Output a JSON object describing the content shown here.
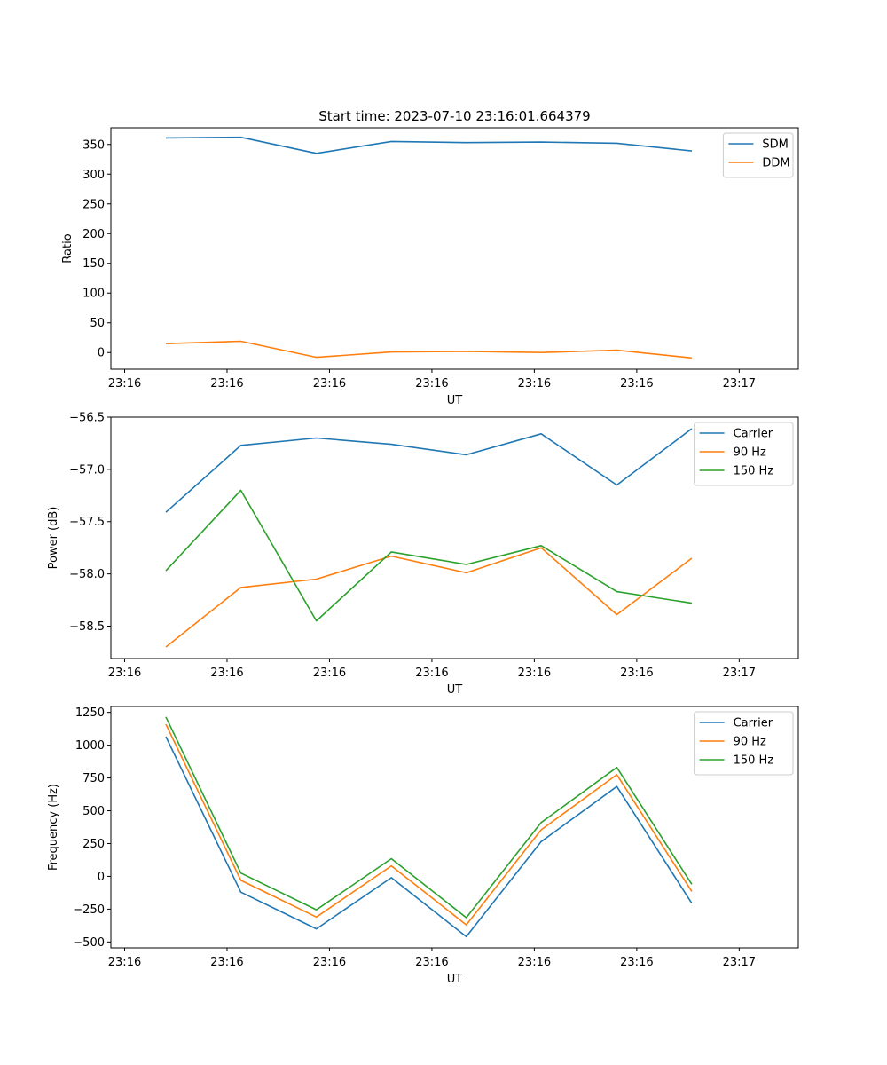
{
  "figure": {
    "title": "Start time: 2023-07-10 23:16:01.664379"
  },
  "chart_data": [
    {
      "type": "line",
      "title": "Start time: 2023-07-10 23:16:01.664379",
      "xlabel": "UT",
      "ylabel": "Ratio",
      "x_tick_labels": [
        "23:16",
        "23:16",
        "23:16",
        "23:16",
        "23:16",
        "23:16",
        "23:17"
      ],
      "xlim": [
        -0.5,
        9.5
      ],
      "ylim": [
        -28,
        378
      ],
      "y_ticks": [
        0,
        50,
        100,
        150,
        200,
        250,
        300,
        350
      ],
      "y_tick_labels": [
        "0",
        "50",
        "100",
        "150",
        "200",
        "250",
        "300",
        "350"
      ],
      "legend_position": "top-right",
      "x": [
        0.3,
        1.39,
        2.49,
        3.58,
        4.67,
        5.76,
        6.86,
        7.95
      ],
      "series": [
        {
          "name": "SDM",
          "color": "#1f77b4",
          "values": [
            361,
            362,
            335,
            355,
            353,
            354,
            352,
            339
          ]
        },
        {
          "name": "DDM",
          "color": "#ff7f0e",
          "values": [
            15,
            19,
            -8,
            1,
            2,
            0,
            4,
            -9
          ]
        }
      ]
    },
    {
      "type": "line",
      "xlabel": "UT",
      "ylabel": "Power (dB)",
      "x_tick_labels": [
        "23:16",
        "23:16",
        "23:16",
        "23:16",
        "23:16",
        "23:16",
        "23:17"
      ],
      "xlim": [
        -0.5,
        9.5
      ],
      "ylim": [
        -58.81,
        -56.5
      ],
      "y_ticks": [
        -58.5,
        -58.0,
        -57.5,
        -57.0,
        -56.5
      ],
      "y_tick_labels": [
        "−58.5",
        "−58.0",
        "−57.5",
        "−57.0",
        "−56.5"
      ],
      "legend_position": "top-right",
      "x": [
        0.3,
        1.39,
        2.49,
        3.58,
        4.67,
        5.76,
        6.86,
        7.95
      ],
      "series": [
        {
          "name": "Carrier",
          "color": "#1f77b4",
          "values": [
            -57.41,
            -56.77,
            -56.7,
            -56.76,
            -56.86,
            -56.66,
            -57.15,
            -56.61
          ]
        },
        {
          "name": "90 Hz",
          "color": "#ff7f0e",
          "values": [
            -58.7,
            -58.13,
            -58.05,
            -57.83,
            -57.99,
            -57.75,
            -58.39,
            -57.85
          ]
        },
        {
          "name": "150 Hz",
          "color": "#2ca02c",
          "values": [
            -57.97,
            -57.2,
            -58.45,
            -57.79,
            -57.91,
            -57.73,
            -58.17,
            -58.28
          ]
        }
      ]
    },
    {
      "type": "line",
      "xlabel": "UT",
      "ylabel": "Frequency (Hz)",
      "x_tick_labels": [
        "23:16",
        "23:16",
        "23:16",
        "23:16",
        "23:16",
        "23:16",
        "23:17"
      ],
      "xlim": [
        -0.5,
        9.5
      ],
      "ylim": [
        -545,
        1295
      ],
      "y_ticks": [
        -500,
        -250,
        0,
        250,
        500,
        750,
        1000,
        1250
      ],
      "y_tick_labels": [
        "−500",
        "−250",
        "0",
        "250",
        "500",
        "750",
        "1000",
        "1250"
      ],
      "legend_position": "top-right",
      "x": [
        0.3,
        1.39,
        2.49,
        3.58,
        4.67,
        5.76,
        6.86,
        7.95
      ],
      "series": [
        {
          "name": "Carrier",
          "color": "#1f77b4",
          "values": [
            1065,
            -120,
            -400,
            -10,
            -460,
            265,
            685,
            -205
          ]
        },
        {
          "name": "90 Hz",
          "color": "#ff7f0e",
          "values": [
            1160,
            -30,
            -310,
            80,
            -370,
            355,
            775,
            -115
          ]
        },
        {
          "name": "150 Hz",
          "color": "#2ca02c",
          "values": [
            1215,
            25,
            -255,
            135,
            -315,
            410,
            830,
            -60
          ]
        }
      ]
    }
  ]
}
